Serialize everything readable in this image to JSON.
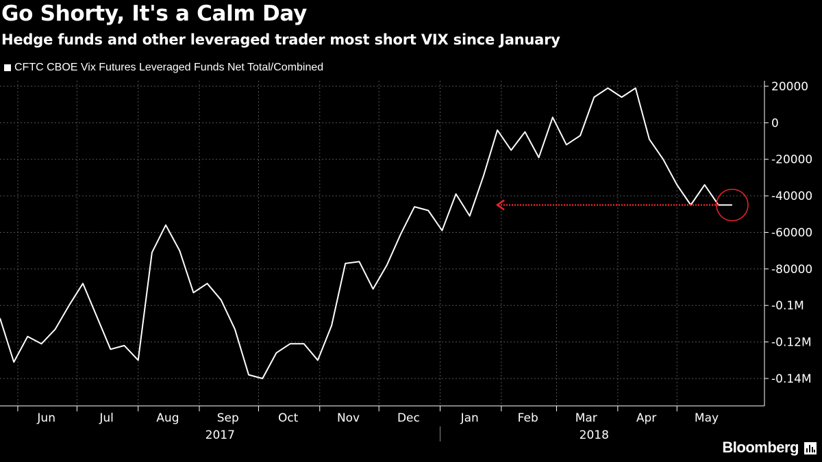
{
  "header": {
    "title": "Go Shorty, It's a Calm Day",
    "subtitle": "Hedge funds and other leveraged trader most short VIX since January"
  },
  "footer": {
    "brand": "Bloomberg"
  },
  "colors": {
    "background": "#000000",
    "line": "#ffffff",
    "grid": "#555555",
    "annotation": "#e8242b"
  },
  "chart_data": {
    "type": "line",
    "title": "Go Shorty, It's a Calm Day",
    "subtitle": "Hedge funds and other leveraged trader most short VIX since January",
    "legend": {
      "position": "top-left",
      "entries": [
        "CFTC CBOE Vix Futures Leveraged Funds Net Total/Combined"
      ]
    },
    "grid": true,
    "y_axis": {
      "side": "right",
      "range": [
        -155000,
        23000
      ],
      "ticks": [
        {
          "value": 20000,
          "label": "20000"
        },
        {
          "value": 0,
          "label": "0"
        },
        {
          "value": -20000,
          "label": "-20000"
        },
        {
          "value": -40000,
          "label": "-40000"
        },
        {
          "value": -60000,
          "label": "-60000"
        },
        {
          "value": -80000,
          "label": "-80000"
        },
        {
          "value": -100000,
          "label": "-0.1M"
        },
        {
          "value": -120000,
          "label": "-0.12M"
        },
        {
          "value": -140000,
          "label": "-0.14M"
        }
      ]
    },
    "x_axis": {
      "range": [
        "2017-05-23",
        "2018-06-06"
      ],
      "months": [
        {
          "label": "Jun",
          "start": "2017-06-01",
          "end": "2017-06-30"
        },
        {
          "label": "Jul",
          "start": "2017-07-01",
          "end": "2017-07-31"
        },
        {
          "label": "Aug",
          "start": "2017-08-01",
          "end": "2017-08-31"
        },
        {
          "label": "Sep",
          "start": "2017-09-01",
          "end": "2017-09-30"
        },
        {
          "label": "Oct",
          "start": "2017-10-01",
          "end": "2017-10-31"
        },
        {
          "label": "Nov",
          "start": "2017-11-01",
          "end": "2017-11-30"
        },
        {
          "label": "Dec",
          "start": "2017-12-01",
          "end": "2017-12-31"
        },
        {
          "label": "Jan",
          "start": "2018-01-01",
          "end": "2018-01-31"
        },
        {
          "label": "Feb",
          "start": "2018-02-01",
          "end": "2018-02-28"
        },
        {
          "label": "Mar",
          "start": "2018-03-01",
          "end": "2018-03-31"
        },
        {
          "label": "Apr",
          "start": "2018-04-01",
          "end": "2018-04-30"
        },
        {
          "label": "May",
          "start": "2018-05-01",
          "end": "2018-05-31"
        }
      ],
      "years": [
        {
          "label": "2017",
          "start": "2017-05-23",
          "end": "2018-01-01"
        },
        {
          "label": "2018",
          "start": "2018-01-01",
          "end": "2018-06-06"
        }
      ]
    },
    "series": [
      {
        "name": "CFTC CBOE Vix Futures Leveraged Funds Net Total/Combined",
        "x": [
          "2017-05-23",
          "2017-05-30",
          "2017-06-06",
          "2017-06-13",
          "2017-06-20",
          "2017-06-27",
          "2017-07-04",
          "2017-07-11",
          "2017-07-18",
          "2017-07-25",
          "2017-08-01",
          "2017-08-08",
          "2017-08-15",
          "2017-08-22",
          "2017-08-29",
          "2017-09-05",
          "2017-09-12",
          "2017-09-19",
          "2017-09-26",
          "2017-10-03",
          "2017-10-10",
          "2017-10-17",
          "2017-10-24",
          "2017-10-31",
          "2017-11-07",
          "2017-11-14",
          "2017-11-21",
          "2017-11-28",
          "2017-12-05",
          "2017-12-12",
          "2017-12-19",
          "2017-12-26",
          "2018-01-02",
          "2018-01-09",
          "2018-01-16",
          "2018-01-23",
          "2018-01-30",
          "2018-02-06",
          "2018-02-13",
          "2018-02-20",
          "2018-02-27",
          "2018-03-06",
          "2018-03-13",
          "2018-03-20",
          "2018-03-27",
          "2018-04-03",
          "2018-04-10",
          "2018-04-17",
          "2018-04-24",
          "2018-05-01",
          "2018-05-08",
          "2018-05-15",
          "2018-05-22",
          "2018-05-29"
        ],
        "values": [
          -107000,
          -131000,
          -117000,
          -121000,
          -113000,
          -100000,
          -88000,
          -106000,
          -124000,
          -122000,
          -130000,
          -71000,
          -56000,
          -70000,
          -93000,
          -88000,
          -97000,
          -113000,
          -138000,
          -140000,
          -126000,
          -121000,
          -121000,
          -130000,
          -111000,
          -77000,
          -76000,
          -91000,
          -78000,
          -61000,
          -46000,
          -48000,
          -59000,
          -39000,
          -51000,
          -29000,
          -4000,
          -15000,
          -5000,
          -19000,
          3000,
          -12000,
          -7000,
          14000,
          19000,
          14000,
          19000,
          -9000,
          -20000,
          -34000,
          -45000,
          -34000,
          -45000,
          -45000
        ]
      }
    ],
    "annotations": [
      {
        "type": "arrow",
        "from": {
          "x": "2018-05-29",
          "y": -45000
        },
        "to": {
          "x": "2018-01-30",
          "y": -45000
        }
      },
      {
        "type": "circle",
        "center": {
          "x": "2018-05-29",
          "y": -45000
        }
      }
    ]
  }
}
